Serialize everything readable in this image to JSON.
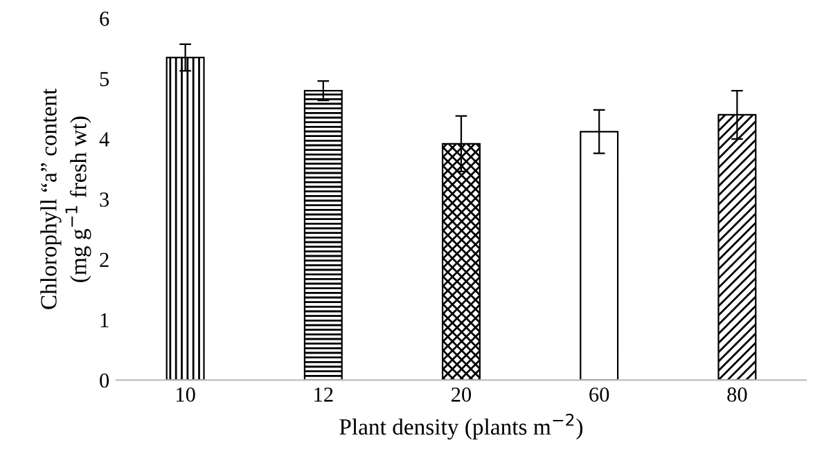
{
  "chart_data": {
    "type": "bar",
    "xlabel": "Plant density (plants m$^{−2}$)",
    "ylabel": "Chlorophyll “a” content\n(mg g$^{−1}$ fresh wt)",
    "categories": [
      "10",
      "12",
      "20",
      "60",
      "80"
    ],
    "values": [
      5.35,
      4.8,
      3.92,
      4.12,
      4.4
    ],
    "errors": [
      0.22,
      0.16,
      0.46,
      0.36,
      0.4
    ],
    "color": "#000000",
    "ylim": [
      0,
      6
    ],
    "yticks": [
      0,
      1,
      2,
      3,
      4,
      5,
      6
    ],
    "grid": false
  }
}
